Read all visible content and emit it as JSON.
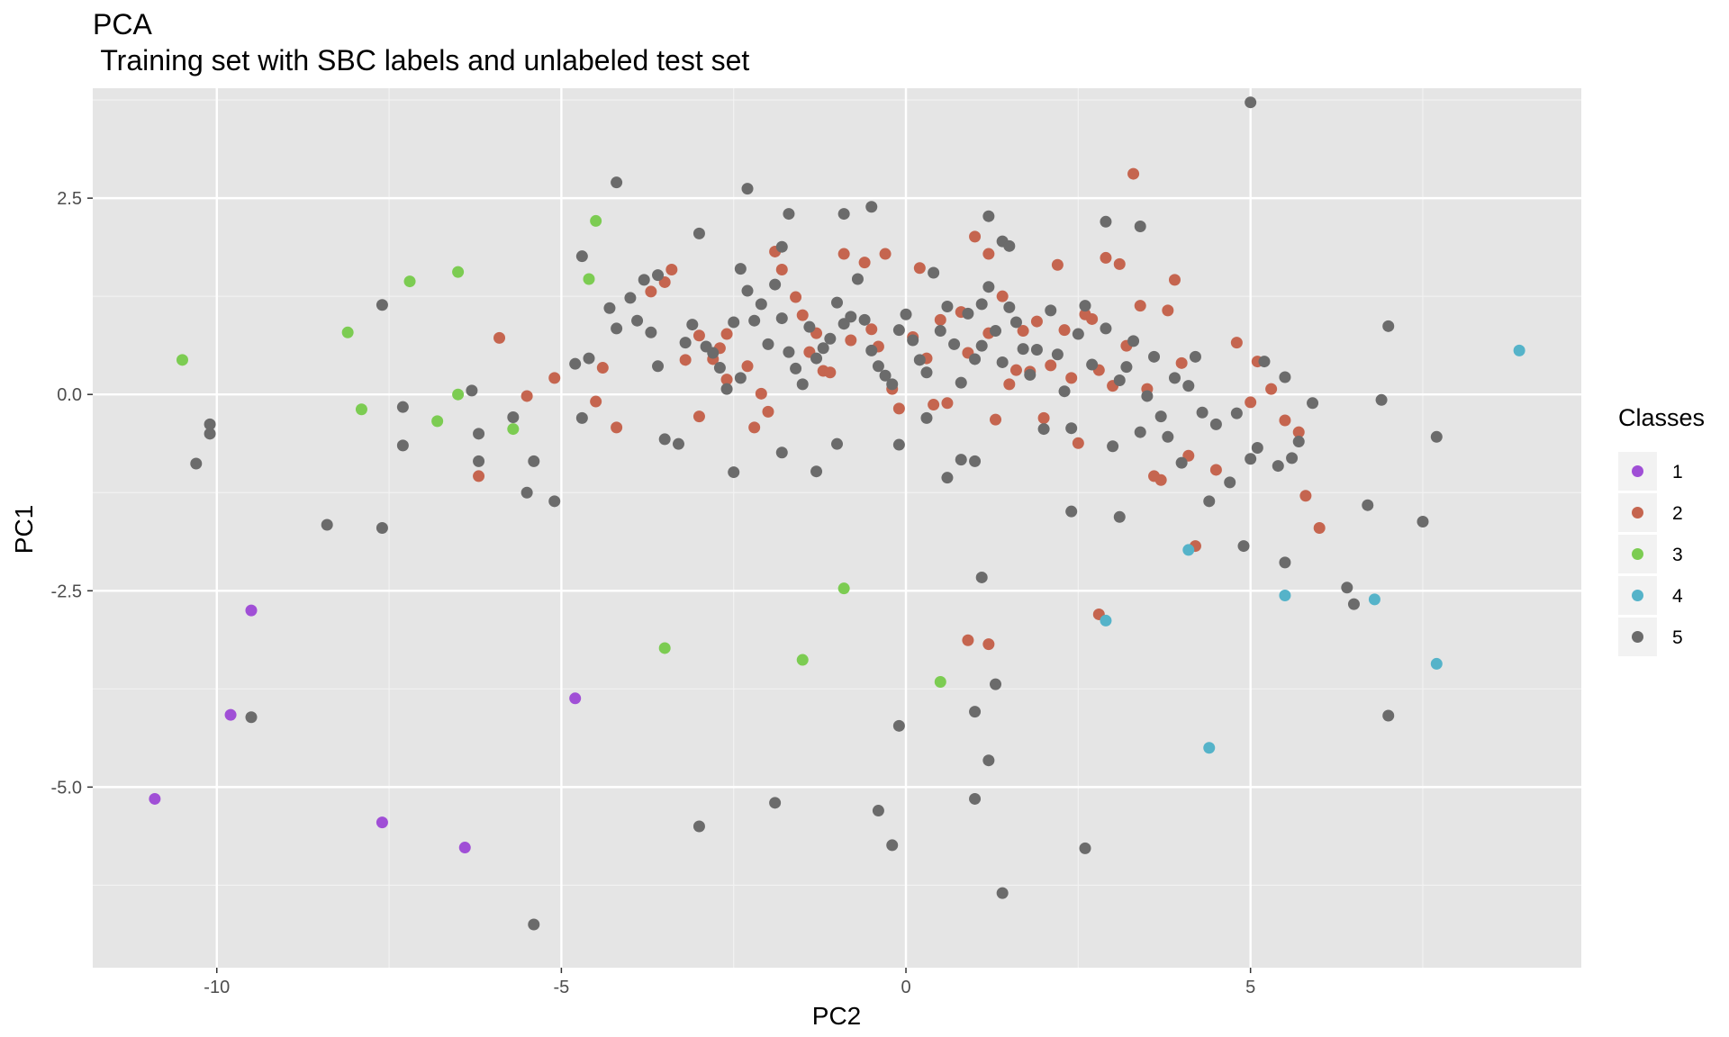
{
  "chart_data": {
    "type": "scatter",
    "title": "PCA",
    "subtitle": " Training set with SBC labels and unlabeled test set",
    "xlabel": "PC2",
    "ylabel": "PC1",
    "xlim": [
      -11.8,
      9.8
    ],
    "ylim": [
      -7.3,
      3.9
    ],
    "x_ticks": [
      -10,
      -5,
      0,
      5
    ],
    "x_tick_labels": [
      "-10",
      "-5",
      "0",
      "5"
    ],
    "y_ticks": [
      2.5,
      0.0,
      -2.5,
      -5.0
    ],
    "y_tick_labels": [
      "2.5",
      "0.0",
      "-2.5",
      "-5.0"
    ],
    "grid": true,
    "legend": {
      "title": "Classes",
      "placement": "right",
      "entries": [
        "1",
        "2",
        "3",
        "4",
        "5"
      ]
    },
    "series": [
      {
        "name": "1",
        "color": "#a04fd6",
        "points": [
          [
            -10.9,
            -5.15
          ],
          [
            -9.8,
            -4.08
          ],
          [
            -9.5,
            -2.75
          ],
          [
            -7.6,
            -5.45
          ],
          [
            -6.4,
            -5.77
          ],
          [
            -4.8,
            -3.87
          ]
        ]
      },
      {
        "name": "2",
        "color": "#c5654f",
        "points": [
          [
            -5.9,
            0.72
          ],
          [
            -6.2,
            -1.04
          ],
          [
            -5.5,
            -0.02
          ],
          [
            -5.1,
            0.21
          ],
          [
            -4.5,
            -0.09
          ],
          [
            -4.4,
            0.34
          ],
          [
            -4.2,
            -0.42
          ],
          [
            -3.7,
            1.31
          ],
          [
            -3.5,
            1.43
          ],
          [
            -3.4,
            1.59
          ],
          [
            -3.2,
            0.44
          ],
          [
            -3.0,
            0.75
          ],
          [
            -3.0,
            -0.28
          ],
          [
            -2.8,
            0.45
          ],
          [
            -2.7,
            0.59
          ],
          [
            -2.6,
            0.77
          ],
          [
            -2.6,
            0.19
          ],
          [
            -2.3,
            0.36
          ],
          [
            -2.2,
            -0.42
          ],
          [
            -2.1,
            0.01
          ],
          [
            -2.0,
            -0.22
          ],
          [
            -1.9,
            1.82
          ],
          [
            -1.8,
            1.59
          ],
          [
            -1.6,
            1.24
          ],
          [
            -1.5,
            1.01
          ],
          [
            -1.4,
            0.54
          ],
          [
            -1.3,
            0.78
          ],
          [
            -1.2,
            0.3
          ],
          [
            -1.1,
            0.28
          ],
          [
            -0.9,
            1.79
          ],
          [
            -0.8,
            0.69
          ],
          [
            -0.6,
            1.68
          ],
          [
            -0.5,
            0.83
          ],
          [
            -0.4,
            0.61
          ],
          [
            -0.3,
            1.79
          ],
          [
            -0.2,
            0.07
          ],
          [
            -0.1,
            -0.18
          ],
          [
            0.1,
            0.73
          ],
          [
            0.2,
            1.61
          ],
          [
            0.3,
            0.46
          ],
          [
            0.4,
            -0.13
          ],
          [
            0.5,
            0.95
          ],
          [
            0.6,
            -0.11
          ],
          [
            0.8,
            1.05
          ],
          [
            0.9,
            0.53
          ],
          [
            1.0,
            2.01
          ],
          [
            1.2,
            1.79
          ],
          [
            1.2,
            0.78
          ],
          [
            1.3,
            -0.32
          ],
          [
            1.4,
            1.25
          ],
          [
            1.5,
            0.13
          ],
          [
            1.6,
            0.31
          ],
          [
            1.7,
            0.81
          ],
          [
            1.8,
            0.29
          ],
          [
            1.9,
            0.93
          ],
          [
            2.0,
            -0.3
          ],
          [
            2.1,
            0.37
          ],
          [
            2.2,
            1.65
          ],
          [
            2.3,
            0.82
          ],
          [
            2.4,
            0.21
          ],
          [
            2.5,
            -0.62
          ],
          [
            2.6,
            1.02
          ],
          [
            2.7,
            0.96
          ],
          [
            2.8,
            0.31
          ],
          [
            2.9,
            1.74
          ],
          [
            3.0,
            0.11
          ],
          [
            3.1,
            1.66
          ],
          [
            3.2,
            0.62
          ],
          [
            3.3,
            2.81
          ],
          [
            3.4,
            1.13
          ],
          [
            3.5,
            0.07
          ],
          [
            3.6,
            -1.04
          ],
          [
            3.7,
            -1.09
          ],
          [
            3.8,
            1.07
          ],
          [
            3.9,
            1.46
          ],
          [
            4.0,
            0.4
          ],
          [
            4.1,
            -0.78
          ],
          [
            4.2,
            -1.93
          ],
          [
            4.5,
            -0.96
          ],
          [
            4.8,
            0.66
          ],
          [
            5.0,
            -0.1
          ],
          [
            5.1,
            0.42
          ],
          [
            5.3,
            0.07
          ],
          [
            5.5,
            -0.33
          ],
          [
            5.7,
            -0.48
          ],
          [
            5.8,
            -1.29
          ],
          [
            6.0,
            -1.7
          ],
          [
            0.9,
            -3.13
          ],
          [
            1.2,
            -3.18
          ],
          [
            2.8,
            -2.8
          ]
        ]
      },
      {
        "name": "3",
        "color": "#7ccc52",
        "points": [
          [
            -10.5,
            0.44
          ],
          [
            -8.1,
            0.79
          ],
          [
            -7.9,
            -0.19
          ],
          [
            -7.2,
            1.44
          ],
          [
            -6.8,
            -0.34
          ],
          [
            -6.5,
            1.56
          ],
          [
            -6.5,
            0.0
          ],
          [
            -5.7,
            -0.44
          ],
          [
            -4.6,
            1.47
          ],
          [
            -4.5,
            2.21
          ],
          [
            -3.5,
            -3.23
          ],
          [
            -1.5,
            -3.38
          ],
          [
            -0.9,
            -2.47
          ],
          [
            0.5,
            -3.66
          ]
        ]
      },
      {
        "name": "4",
        "color": "#55b3c9",
        "points": [
          [
            8.9,
            0.56
          ],
          [
            4.1,
            -1.98
          ],
          [
            5.5,
            -2.56
          ],
          [
            6.8,
            -2.61
          ],
          [
            2.9,
            -2.88
          ],
          [
            7.7,
            -3.43
          ],
          [
            4.4,
            -4.5
          ]
        ]
      },
      {
        "name": "5",
        "color": "#6b6b6b",
        "points": [
          [
            -10.3,
            -0.88
          ],
          [
            -10.1,
            -0.5
          ],
          [
            -10.1,
            -0.38
          ],
          [
            -9.5,
            -4.11
          ],
          [
            -8.4,
            -1.66
          ],
          [
            -7.6,
            1.14
          ],
          [
            -7.6,
            -1.7
          ],
          [
            -7.3,
            -0.16
          ],
          [
            -7.3,
            -0.65
          ],
          [
            -6.3,
            0.05
          ],
          [
            -6.2,
            -0.5
          ],
          [
            -6.2,
            -0.85
          ],
          [
            -5.7,
            -0.29
          ],
          [
            -5.5,
            -1.25
          ],
          [
            -5.4,
            -0.85
          ],
          [
            -5.1,
            -1.36
          ],
          [
            -5.4,
            -6.75
          ],
          [
            -4.8,
            0.39
          ],
          [
            -4.7,
            1.76
          ],
          [
            -4.6,
            0.46
          ],
          [
            -4.7,
            -0.3
          ],
          [
            -4.3,
            1.1
          ],
          [
            -4.2,
            0.84
          ],
          [
            -4.2,
            2.7
          ],
          [
            -4.0,
            1.23
          ],
          [
            -3.9,
            0.94
          ],
          [
            -3.8,
            1.46
          ],
          [
            -3.7,
            0.79
          ],
          [
            -3.6,
            1.52
          ],
          [
            -3.6,
            0.36
          ],
          [
            -3.5,
            -0.57
          ],
          [
            -3.3,
            -0.63
          ],
          [
            -3.2,
            0.66
          ],
          [
            -3.1,
            0.89
          ],
          [
            -2.9,
            0.61
          ],
          [
            -2.8,
            0.53
          ],
          [
            -2.7,
            0.34
          ],
          [
            -2.6,
            0.07
          ],
          [
            -2.5,
            0.92
          ],
          [
            -2.4,
            0.21
          ],
          [
            -2.3,
            1.32
          ],
          [
            -2.2,
            0.94
          ],
          [
            -2.1,
            1.15
          ],
          [
            -2.0,
            0.64
          ],
          [
            -1.9,
            1.4
          ],
          [
            -1.8,
            0.97
          ],
          [
            -1.7,
            0.54
          ],
          [
            -1.6,
            0.33
          ],
          [
            -1.5,
            0.13
          ],
          [
            -1.4,
            0.86
          ],
          [
            -1.3,
            0.46
          ],
          [
            -1.2,
            0.59
          ],
          [
            -1.1,
            0.71
          ],
          [
            -1.0,
            1.17
          ],
          [
            -0.9,
            0.9
          ],
          [
            -0.8,
            0.99
          ],
          [
            -0.7,
            1.47
          ],
          [
            -0.6,
            0.95
          ],
          [
            -0.5,
            0.56
          ],
          [
            -0.4,
            0.36
          ],
          [
            -0.3,
            0.24
          ],
          [
            -0.2,
            0.13
          ],
          [
            -0.1,
            0.82
          ],
          [
            0.0,
            1.02
          ],
          [
            0.1,
            0.69
          ],
          [
            0.2,
            0.44
          ],
          [
            0.3,
            0.28
          ],
          [
            0.4,
            1.55
          ],
          [
            0.5,
            0.81
          ],
          [
            0.6,
            1.12
          ],
          [
            0.7,
            0.64
          ],
          [
            0.8,
            0.15
          ],
          [
            0.9,
            1.03
          ],
          [
            1.0,
            0.45
          ],
          [
            1.1,
            1.15
          ],
          [
            1.1,
            0.62
          ],
          [
            1.2,
            1.37
          ],
          [
            1.3,
            0.81
          ],
          [
            1.4,
            0.41
          ],
          [
            1.5,
            1.11
          ],
          [
            1.6,
            0.92
          ],
          [
            1.7,
            0.58
          ],
          [
            1.8,
            0.25
          ],
          [
            1.9,
            0.57
          ],
          [
            2.0,
            -0.44
          ],
          [
            2.1,
            1.07
          ],
          [
            2.2,
            0.51
          ],
          [
            2.3,
            0.04
          ],
          [
            2.4,
            -0.43
          ],
          [
            2.5,
            0.77
          ],
          [
            2.6,
            1.13
          ],
          [
            2.7,
            0.38
          ],
          [
            2.9,
            0.84
          ],
          [
            3.0,
            -0.66
          ],
          [
            3.1,
            0.18
          ],
          [
            3.2,
            0.35
          ],
          [
            3.3,
            0.68
          ],
          [
            3.4,
            -0.48
          ],
          [
            3.5,
            -0.02
          ],
          [
            3.6,
            0.48
          ],
          [
            3.7,
            -0.28
          ],
          [
            3.8,
            -0.54
          ],
          [
            3.9,
            0.21
          ],
          [
            4.0,
            -0.87
          ],
          [
            4.1,
            0.11
          ],
          [
            4.2,
            0.48
          ],
          [
            4.3,
            -0.23
          ],
          [
            4.4,
            -1.36
          ],
          [
            4.5,
            -0.38
          ],
          [
            4.7,
            -1.12
          ],
          [
            4.8,
            -0.24
          ],
          [
            4.9,
            -1.93
          ],
          [
            5.0,
            -0.82
          ],
          [
            5.1,
            -0.68
          ],
          [
            5.2,
            0.42
          ],
          [
            5.4,
            -0.91
          ],
          [
            5.5,
            0.22
          ],
          [
            5.6,
            -0.81
          ],
          [
            5.7,
            -0.6
          ],
          [
            5.9,
            -0.11
          ],
          [
            6.5,
            -2.67
          ],
          [
            6.4,
            -2.46
          ],
          [
            6.7,
            -1.41
          ],
          [
            6.9,
            -0.07
          ],
          [
            7.0,
            0.87
          ],
          [
            7.5,
            -1.62
          ],
          [
            7.7,
            -0.54
          ],
          [
            7.0,
            -4.09
          ],
          [
            5.0,
            3.72
          ],
          [
            -2.3,
            2.62
          ],
          [
            -1.7,
            2.3
          ],
          [
            -0.9,
            2.3
          ],
          [
            -0.5,
            2.39
          ],
          [
            1.2,
            2.27
          ],
          [
            3.4,
            2.14
          ],
          [
            2.9,
            2.2
          ],
          [
            1.4,
            1.95
          ],
          [
            1.5,
            1.89
          ],
          [
            -3.0,
            2.05
          ],
          [
            -2.4,
            1.6
          ],
          [
            -1.8,
            1.88
          ],
          [
            1.1,
            -2.33
          ],
          [
            1.0,
            -4.04
          ],
          [
            1.2,
            -4.66
          ],
          [
            1.3,
            -3.69
          ],
          [
            1.0,
            -5.15
          ],
          [
            -0.1,
            -4.22
          ],
          [
            -0.4,
            -5.3
          ],
          [
            -0.2,
            -5.74
          ],
          [
            1.4,
            -6.35
          ],
          [
            2.6,
            -5.78
          ],
          [
            -1.9,
            -5.2
          ],
          [
            -3.0,
            -5.5
          ],
          [
            5.5,
            -2.14
          ],
          [
            3.1,
            -1.56
          ],
          [
            2.4,
            -1.49
          ],
          [
            -1.3,
            -0.98
          ],
          [
            -2.5,
            -0.99
          ],
          [
            -1.8,
            -0.74
          ],
          [
            0.6,
            -1.06
          ],
          [
            1.0,
            -0.85
          ],
          [
            -0.1,
            -0.64
          ],
          [
            0.8,
            -0.83
          ],
          [
            -1.0,
            -0.63
          ],
          [
            0.3,
            -0.3
          ]
        ]
      }
    ]
  }
}
